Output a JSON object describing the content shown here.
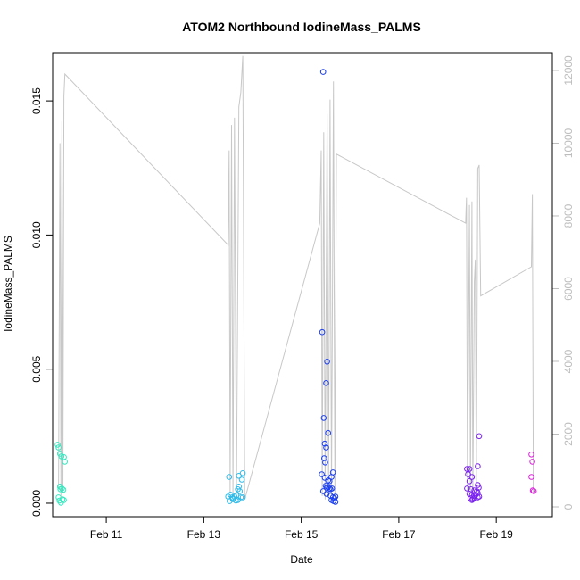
{
  "chart_data": {
    "type": "scatter",
    "title": "ATOM2 Northbound IodineMass_PALMS",
    "xlabel": "Date",
    "ylabel": "IodineMass_PALMS",
    "x_unit": "days in February",
    "xlim": [
      9.9,
      20.15
    ],
    "ylim": [
      -0.0005,
      0.0168
    ],
    "x_ticks": [
      {
        "v": 11,
        "label": "Feb 11"
      },
      {
        "v": 13,
        "label": "Feb 13"
      },
      {
        "v": 15,
        "label": "Feb 15"
      },
      {
        "v": 17,
        "label": "Feb 17"
      },
      {
        "v": 19,
        "label": "Feb 19"
      }
    ],
    "y_ticks": [
      {
        "v": 0.0,
        "label": "0.000"
      },
      {
        "v": 0.005,
        "label": "0.005"
      },
      {
        "v": 0.01,
        "label": "0.010"
      },
      {
        "v": 0.015,
        "label": "0.015"
      }
    ],
    "y2_label": "",
    "y2lim": [
      -270,
      12490
    ],
    "y2_ticks": [
      {
        "v": 0,
        "label": "0"
      },
      {
        "v": 2000,
        "label": "2000"
      },
      {
        "v": 4000,
        "label": "4000"
      },
      {
        "v": 6000,
        "label": "6000"
      },
      {
        "v": 8000,
        "label": "8000"
      },
      {
        "v": 10000,
        "label": "10000"
      },
      {
        "v": 12000,
        "label": "12000"
      }
    ],
    "altitude_series": {
      "color": "#c8c8c8",
      "points": [
        [
          10.02,
          500
        ],
        [
          10.05,
          10000
        ],
        [
          10.07,
          300
        ],
        [
          10.09,
          10600
        ],
        [
          10.11,
          400
        ],
        [
          10.13,
          11300
        ],
        [
          10.15,
          11900
        ],
        [
          13.5,
          7200
        ],
        [
          13.52,
          9800
        ],
        [
          13.54,
          400
        ],
        [
          13.57,
          10500
        ],
        [
          13.6,
          300
        ],
        [
          13.63,
          10700
        ],
        [
          13.67,
          200
        ],
        [
          13.72,
          11000
        ],
        [
          13.76,
          11400
        ],
        [
          13.8,
          12400
        ],
        [
          13.84,
          200
        ],
        [
          15.38,
          7800
        ],
        [
          15.41,
          9800
        ],
        [
          15.43,
          300
        ],
        [
          15.46,
          10300
        ],
        [
          15.49,
          200
        ],
        [
          15.53,
          10800
        ],
        [
          15.56,
          300
        ],
        [
          15.59,
          11200
        ],
        [
          15.62,
          300
        ],
        [
          15.66,
          11700
        ],
        [
          15.69,
          300
        ],
        [
          15.72,
          9700
        ],
        [
          18.37,
          7800
        ],
        [
          18.39,
          8500
        ],
        [
          18.41,
          400
        ],
        [
          18.45,
          8300
        ],
        [
          18.47,
          400
        ],
        [
          18.5,
          8400
        ],
        [
          18.52,
          300
        ],
        [
          18.55,
          6200
        ],
        [
          18.57,
          6800
        ],
        [
          18.59,
          300
        ],
        [
          18.62,
          9300
        ],
        [
          18.65,
          9400
        ],
        [
          18.68,
          5800
        ],
        [
          19.72,
          6600
        ],
        [
          19.74,
          8600
        ],
        [
          19.76,
          400
        ]
      ]
    },
    "series": [
      {
        "color": "#33e8bf",
        "points": [
          [
            10.0,
            0.00218
          ],
          [
            10.02,
            0.00208
          ],
          [
            10.05,
            0.00185
          ],
          [
            10.08,
            0.00175
          ],
          [
            10.13,
            0.00172
          ],
          [
            10.15,
            0.00155
          ],
          [
            10.02,
            0.00022
          ],
          [
            10.05,
            0.00062
          ],
          [
            10.06,
            0.00052
          ],
          [
            10.09,
            0.00055
          ],
          [
            10.12,
            0.0005
          ],
          [
            10.04,
            0.0001
          ],
          [
            10.07,
            2e-05
          ],
          [
            10.1,
            0.00015
          ],
          [
            10.13,
            0.00012
          ]
        ]
      },
      {
        "color": "#2ebbe8",
        "points": [
          [
            13.52,
            0.00098
          ],
          [
            13.55,
            0.00032
          ],
          [
            13.5,
            0.00025
          ],
          [
            13.58,
            0.00022
          ],
          [
            13.6,
            0.00018
          ],
          [
            13.63,
            0.00025
          ],
          [
            13.67,
            0.0003
          ],
          [
            13.7,
            0.00052
          ],
          [
            13.72,
            0.00062
          ],
          [
            13.74,
            0.00045
          ],
          [
            13.76,
            0.00022
          ],
          [
            13.8,
            0.00022
          ],
          [
            13.72,
            0.00102
          ],
          [
            13.8,
            0.00112
          ],
          [
            13.78,
            0.00088
          ],
          [
            13.53,
            8e-05
          ],
          [
            13.6,
            0.00015
          ],
          [
            13.66,
            0.0001
          ],
          [
            13.7,
            0.00012
          ]
        ]
      },
      {
        "color": "#1a3ef0",
        "points": [
          [
            15.45,
            0.01608
          ],
          [
            15.43,
            0.00638
          ],
          [
            15.53,
            0.00528
          ],
          [
            15.51,
            0.00448
          ],
          [
            15.46,
            0.00318
          ],
          [
            15.55,
            0.00262
          ],
          [
            15.48,
            0.00222
          ],
          [
            15.51,
            0.00208
          ],
          [
            15.47,
            0.00168
          ],
          [
            15.49,
            0.00152
          ],
          [
            15.42,
            0.00108
          ],
          [
            15.48,
            0.00095
          ],
          [
            15.55,
            0.00085
          ],
          [
            15.58,
            0.00082
          ],
          [
            15.65,
            0.00115
          ],
          [
            15.62,
            0.00098
          ],
          [
            15.5,
            0.00065
          ],
          [
            15.52,
            0.00058
          ],
          [
            15.55,
            0.0006
          ],
          [
            15.58,
            0.00055
          ],
          [
            15.6,
            0.00052
          ],
          [
            15.63,
            0.00055
          ],
          [
            15.45,
            0.00045
          ],
          [
            15.52,
            0.00035
          ],
          [
            15.6,
            0.00028
          ],
          [
            15.65,
            0.00022
          ],
          [
            15.68,
            0.00018
          ],
          [
            15.7,
            0.00025
          ],
          [
            15.62,
            0.00012
          ],
          [
            15.66,
            8e-05
          ],
          [
            15.7,
            5e-05
          ]
        ]
      },
      {
        "color": "#7a22ee",
        "points": [
          [
            18.65,
            0.0025
          ],
          [
            18.62,
            0.00138
          ],
          [
            18.4,
            0.00128
          ],
          [
            18.45,
            0.00128
          ],
          [
            18.42,
            0.00108
          ],
          [
            18.5,
            0.00098
          ],
          [
            18.45,
            0.00082
          ],
          [
            18.62,
            0.00068
          ],
          [
            18.64,
            0.00058
          ],
          [
            18.4,
            0.00055
          ],
          [
            18.48,
            0.00052
          ],
          [
            18.55,
            0.00048
          ],
          [
            18.6,
            0.00045
          ],
          [
            18.62,
            0.00038
          ],
          [
            18.45,
            0.00035
          ],
          [
            18.5,
            0.0003
          ],
          [
            18.55,
            0.00028
          ],
          [
            18.58,
            0.00032
          ],
          [
            18.65,
            0.00025
          ],
          [
            18.47,
            0.00018
          ],
          [
            18.5,
            0.00012
          ],
          [
            18.52,
            0.00015
          ],
          [
            18.55,
            0.0002
          ],
          [
            18.62,
            0.00022
          ]
        ]
      },
      {
        "color": "#dd22dd",
        "points": [
          [
            19.72,
            0.00182
          ],
          [
            19.74,
            0.00155
          ],
          [
            19.72,
            0.00098
          ],
          [
            19.75,
            0.00048
          ],
          [
            19.77,
            0.00045
          ]
        ]
      }
    ]
  }
}
